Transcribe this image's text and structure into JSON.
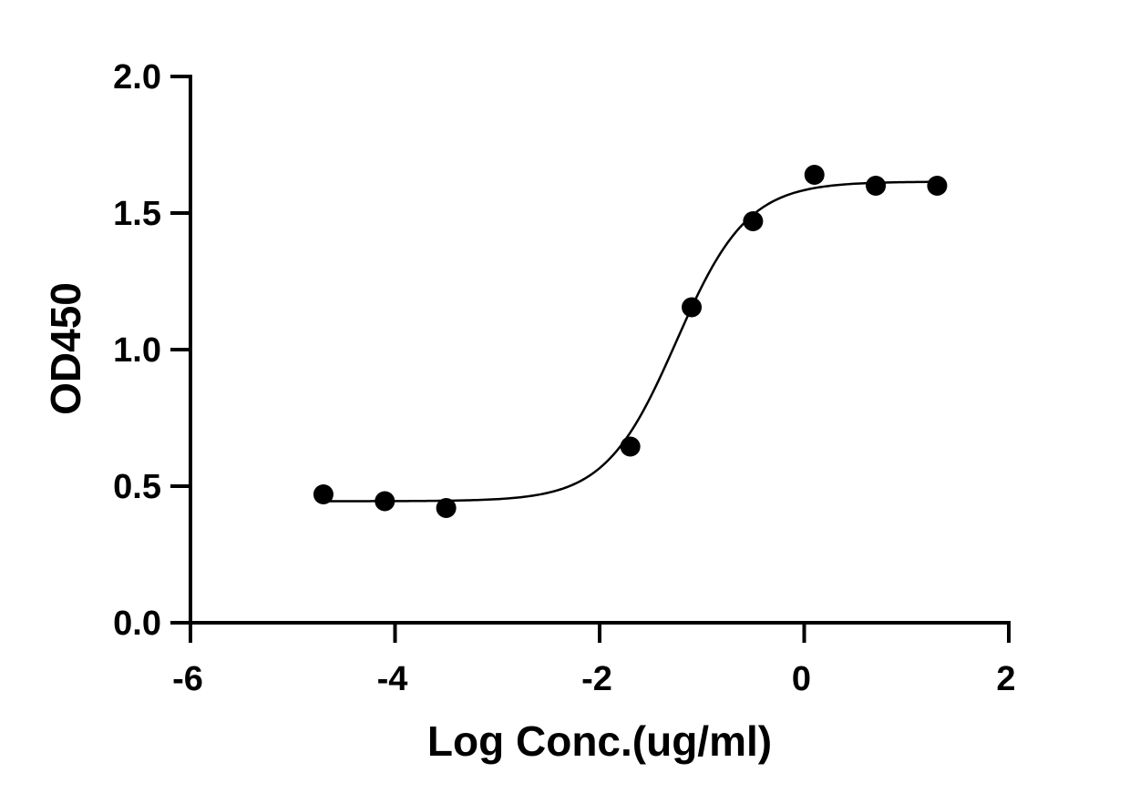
{
  "chart_data": {
    "type": "scatter",
    "xlabel": "Log Conc.(ug/ml)",
    "ylabel": "OD450",
    "xlim": [
      -6,
      2
    ],
    "ylim": [
      0,
      2
    ],
    "x_ticks": [
      -6,
      -4,
      -2,
      0,
      2
    ],
    "x_tick_labels": [
      "-6",
      "-4",
      "-2",
      "0",
      "2"
    ],
    "y_ticks": [
      0,
      0.5,
      1,
      1.5,
      2
    ],
    "y_tick_labels": [
      "0.0",
      "0.5",
      "1.0",
      "1.5",
      "2.0"
    ],
    "grid": false,
    "legend": "none",
    "series": [
      {
        "x": [
          -4.7,
          -4.1,
          -3.5,
          -1.7,
          -1.1,
          -0.5,
          0.1,
          0.7,
          1.3
        ],
        "y": [
          0.47,
          0.445,
          0.42,
          0.645,
          1.155,
          1.47,
          1.64,
          1.6,
          1.6
        ],
        "marker": "filled-circle",
        "color": "#000000"
      }
    ],
    "fit_curve": {
      "model": "four-parameter logistic",
      "bottom": 0.445,
      "top": 1.615,
      "log_ec50": -1.25,
      "hill_slope": 1.25,
      "color": "#000000"
    }
  }
}
